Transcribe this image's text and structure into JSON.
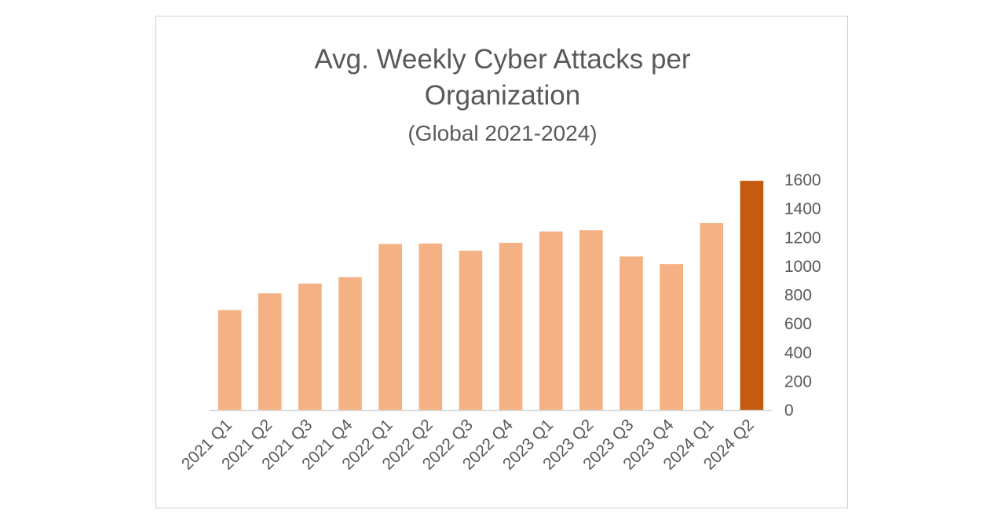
{
  "chart_data": {
    "type": "bar",
    "title_lines": [
      "Avg. Weekly Cyber Attacks per",
      "Organization"
    ],
    "subtitle": "(Global 2021-2024)",
    "xlabel": "",
    "ylabel": "",
    "categories": [
      "2021 Q1",
      "2021 Q2",
      "2021 Q3",
      "2021 Q4",
      "2022 Q1",
      "2022 Q2",
      "2022 Q3",
      "2022 Q4",
      "2023 Q1",
      "2023 Q2",
      "2023 Q3",
      "2023 Q4",
      "2024 Q1",
      "2024 Q2"
    ],
    "values": [
      695,
      812,
      880,
      924,
      1155,
      1158,
      1108,
      1163,
      1242,
      1250,
      1068,
      1015,
      1300,
      1594
    ],
    "ylim": [
      0,
      1600
    ],
    "yticks": [
      0,
      200,
      400,
      600,
      800,
      1000,
      1200,
      1400,
      1600
    ],
    "y_axis_side": "right",
    "grid": false,
    "legend": "none",
    "colors": {
      "bar": "#f4b183",
      "highlight": "#c55a11",
      "axis": "#d9d9d9",
      "text": "#595959"
    },
    "highlight_index": 13
  }
}
